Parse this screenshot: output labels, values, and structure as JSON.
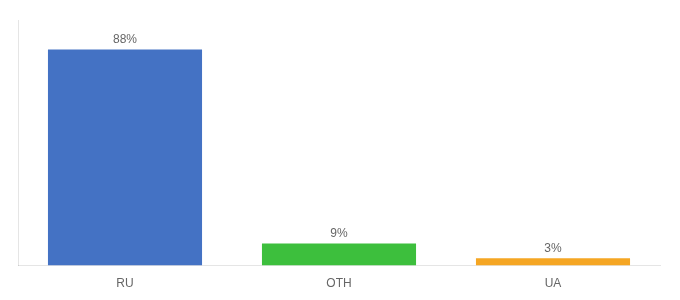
{
  "chart_data": {
    "type": "bar",
    "categories": [
      "RU",
      "OTH",
      "UA"
    ],
    "values": [
      88,
      9,
      3
    ],
    "value_labels": [
      "88%",
      "9%",
      "3%"
    ],
    "colors": [
      "#4472c4",
      "#3dbf3d",
      "#f5a623"
    ],
    "ylim": [
      0,
      100
    ],
    "data_labels": true,
    "tick_labels": "x",
    "grid": false
  }
}
